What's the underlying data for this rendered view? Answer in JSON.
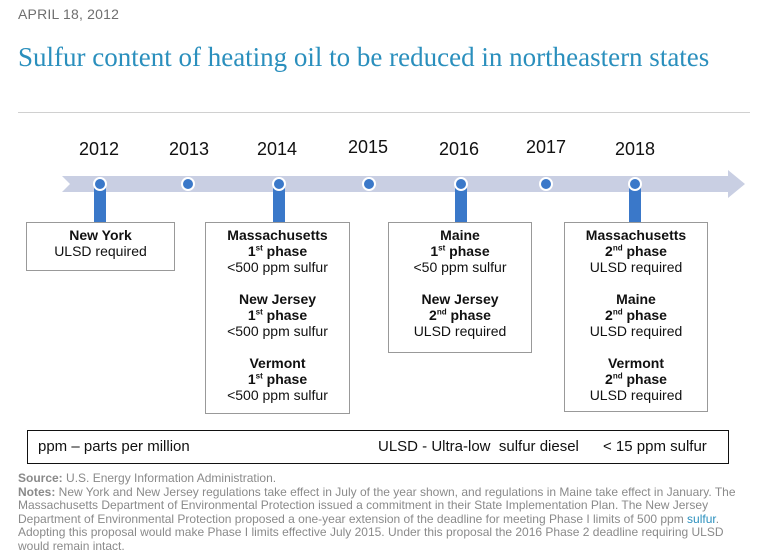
{
  "date": "APRIL 18, 2012",
  "title": "Sulfur content of heating oil to be reduced in northeastern states",
  "years": [
    "2012",
    "2013",
    "2014",
    "2015",
    "2016",
    "2017",
    "2018"
  ],
  "colors": {
    "arrow": "#c9cfe3",
    "marker": "#3a78c9",
    "title": "#2a8fbd"
  },
  "boxes": [
    {
      "entries": [
        {
          "state": "New York",
          "phase": "",
          "detail": "ULSD required"
        }
      ]
    },
    {
      "entries": [
        {
          "state": "Massachusetts",
          "phase_num": "1",
          "phase_sup": "st",
          "phase_word": " phase",
          "detail": "<500 ppm sulfur"
        },
        {
          "state": "New Jersey",
          "phase_num": "1",
          "phase_sup": "st",
          "phase_word": " phase",
          "detail": "<500 ppm sulfur"
        },
        {
          "state": "Vermont",
          "phase_num": "1",
          "phase_sup": "st",
          "phase_word": " phase",
          "detail": "<500 ppm sulfur"
        }
      ]
    },
    {
      "entries": [
        {
          "state": "Maine",
          "phase_num": "1",
          "phase_sup": "st",
          "phase_word": " phase",
          "detail": "<50 ppm sulfur"
        },
        {
          "state": "New Jersey",
          "phase_num": "2",
          "phase_sup": "nd",
          "phase_word": " phase",
          "detail": "ULSD required"
        }
      ]
    },
    {
      "entries": [
        {
          "state": "Massachusetts",
          "phase_num": "2",
          "phase_sup": "nd",
          "phase_word": " phase",
          "detail": "ULSD required"
        },
        {
          "state": "Maine",
          "phase_num": "2",
          "phase_sup": "nd",
          "phase_word": " phase",
          "detail": "ULSD required"
        },
        {
          "state": "Vermont",
          "phase_num": "2",
          "phase_sup": "nd",
          "phase_word": " phase",
          "detail": "ULSD required"
        }
      ]
    }
  ],
  "legend": {
    "ppm": "ppm – parts per million",
    "ulsd": "ULSD - Ultra-low  sulfur diesel",
    "threshold": "< 15 ppm sulfur"
  },
  "source_label": "Source:",
  "source_text": " U.S. Energy Information Administration.",
  "notes_label": "Notes:",
  "notes_text_1": " New York and New Jersey regulations take effect in July of the year shown, and regulations in Maine take effect in January. The Massachusetts Department of Environmental Protection issued a commitment in their State Implementation Plan. The New Jersey Department of Environmental Protection proposed a one-year extension of the deadline for meeting Phase I limits of 500 ppm ",
  "notes_link": "sulfur",
  "notes_text_2": ". Adopting this proposal would make Phase I limits effective July 2015. Under this proposal the 2016 Phase 2 deadline requiring ULSD would remain intact."
}
